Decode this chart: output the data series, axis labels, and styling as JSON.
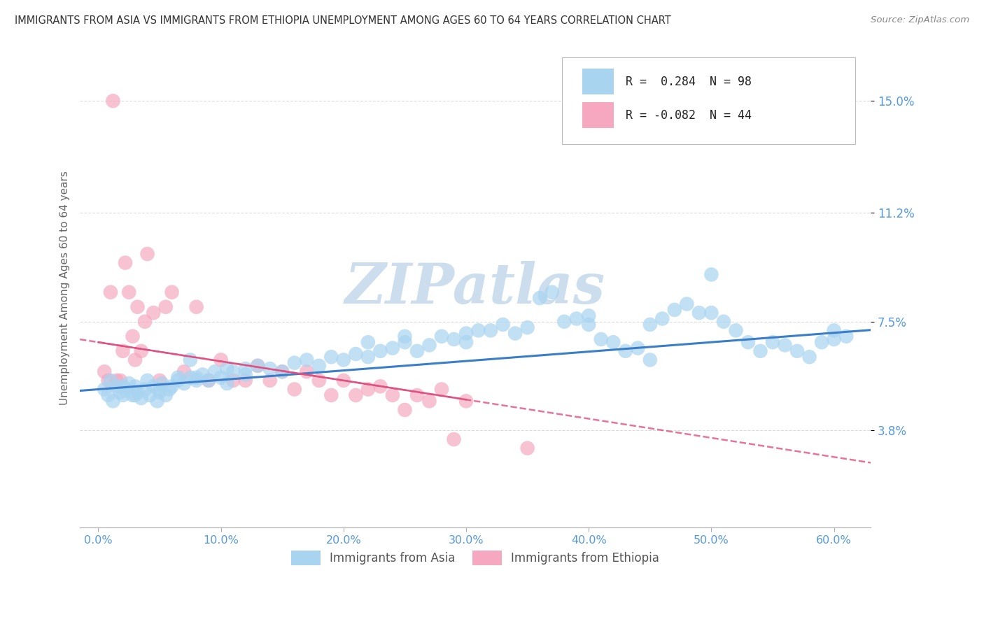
{
  "title": "IMMIGRANTS FROM ASIA VS IMMIGRANTS FROM ETHIOPIA UNEMPLOYMENT AMONG AGES 60 TO 64 YEARS CORRELATION CHART",
  "source": "Source: ZipAtlas.com",
  "xlabel_ticks": [
    "0.0%",
    "10.0%",
    "20.0%",
    "30.0%",
    "40.0%",
    "50.0%",
    "60.0%"
  ],
  "xlabel_vals": [
    0.0,
    10.0,
    20.0,
    30.0,
    40.0,
    50.0,
    60.0
  ],
  "ylabel_ticks": [
    "3.8%",
    "7.5%",
    "11.2%",
    "15.0%"
  ],
  "ylabel_vals": [
    3.8,
    7.5,
    11.2,
    15.0
  ],
  "xlim": [
    -1.5,
    63.0
  ],
  "ylim": [
    0.5,
    16.8
  ],
  "asia_R": 0.284,
  "asia_N": 98,
  "ethiopia_R": -0.082,
  "ethiopia_N": 44,
  "asia_color": "#A8D4F0",
  "ethiopia_color": "#F5A8C0",
  "asia_line_color": "#3A7DC9",
  "ethiopia_line_color": "#E05080",
  "grid_color": "#CCCCCC",
  "title_color": "#333333",
  "tick_label_color": "#5599DD",
  "watermark_color": "#CCDDEE",
  "watermark_text": "ZIPatlas",
  "ylabel_text": "Unemployment Among Ages 60 to 64 years",
  "legend_label_asia": "Immigrants from Asia",
  "legend_label_ethiopia": "Immigrants from Ethiopia",
  "asia_scatter_x": [
    0.5,
    0.8,
    1.0,
    1.2,
    1.5,
    1.8,
    2.0,
    2.2,
    2.5,
    2.8,
    3.0,
    3.2,
    3.5,
    3.8,
    4.0,
    4.2,
    4.5,
    4.8,
    5.0,
    5.2,
    5.5,
    5.8,
    6.0,
    6.5,
    7.0,
    7.5,
    8.0,
    8.5,
    9.0,
    9.5,
    10.0,
    10.5,
    11.0,
    12.0,
    13.0,
    14.0,
    15.0,
    16.0,
    17.0,
    18.0,
    19.0,
    20.0,
    21.0,
    22.0,
    23.0,
    24.0,
    25.0,
    26.0,
    27.0,
    28.0,
    29.0,
    30.0,
    32.0,
    33.0,
    34.0,
    35.0,
    36.0,
    37.0,
    38.0,
    39.0,
    40.0,
    41.0,
    42.0,
    43.0,
    44.0,
    45.0,
    46.0,
    47.0,
    48.0,
    49.0,
    50.0,
    51.0,
    52.0,
    53.0,
    54.0,
    55.0,
    56.0,
    57.0,
    58.0,
    59.0,
    60.0,
    61.0,
    45.0,
    30.0,
    25.0,
    12.0,
    8.0,
    5.0,
    3.0,
    2.0,
    6.5,
    7.5,
    10.5,
    22.0,
    31.0,
    40.0,
    50.0,
    60.0
  ],
  "asia_scatter_y": [
    5.2,
    5.0,
    5.5,
    4.8,
    5.3,
    5.1,
    5.0,
    5.2,
    5.4,
    5.0,
    5.3,
    5.1,
    4.9,
    5.2,
    5.5,
    5.0,
    5.3,
    4.8,
    5.1,
    5.4,
    5.0,
    5.2,
    5.3,
    5.5,
    5.4,
    5.6,
    5.5,
    5.7,
    5.5,
    5.8,
    5.6,
    5.4,
    5.8,
    5.7,
    6.0,
    5.9,
    5.8,
    6.1,
    6.2,
    6.0,
    6.3,
    6.2,
    6.4,
    6.3,
    6.5,
    6.6,
    6.8,
    6.5,
    6.7,
    7.0,
    6.9,
    7.1,
    7.2,
    7.4,
    7.1,
    7.3,
    8.3,
    8.5,
    7.5,
    7.6,
    7.4,
    6.9,
    6.8,
    6.5,
    6.6,
    7.4,
    7.6,
    7.9,
    8.1,
    7.8,
    9.1,
    7.5,
    7.2,
    6.8,
    6.5,
    6.8,
    6.7,
    6.5,
    6.3,
    6.8,
    6.9,
    7.0,
    6.2,
    6.8,
    7.0,
    5.9,
    5.6,
    5.2,
    5.0,
    5.3,
    5.6,
    6.2,
    5.9,
    6.8,
    7.2,
    7.7,
    7.8,
    7.2
  ],
  "ethiopia_scatter_x": [
    0.5,
    0.8,
    1.0,
    1.2,
    1.5,
    1.8,
    2.0,
    2.2,
    2.5,
    2.8,
    3.0,
    3.2,
    3.5,
    3.8,
    4.0,
    4.5,
    5.0,
    5.5,
    6.0,
    7.0,
    8.0,
    9.0,
    10.0,
    11.0,
    12.0,
    13.0,
    14.0,
    15.0,
    16.0,
    17.0,
    18.0,
    19.0,
    20.0,
    21.0,
    22.0,
    23.0,
    24.0,
    25.0,
    26.0,
    27.0,
    28.0,
    29.0,
    30.0,
    35.0
  ],
  "ethiopia_scatter_y": [
    5.8,
    5.5,
    8.5,
    15.0,
    5.5,
    5.5,
    6.5,
    9.5,
    8.5,
    7.0,
    6.2,
    8.0,
    6.5,
    7.5,
    9.8,
    7.8,
    5.5,
    8.0,
    8.5,
    5.8,
    8.0,
    5.5,
    6.2,
    5.5,
    5.5,
    6.0,
    5.5,
    5.8,
    5.2,
    5.8,
    5.5,
    5.0,
    5.5,
    5.0,
    5.2,
    5.3,
    5.0,
    4.5,
    5.0,
    4.8,
    5.2,
    3.5,
    4.8,
    3.2
  ],
  "asia_trend_slope": 0.032,
  "asia_trend_intercept": 5.2,
  "ethiopia_trend_slope": -0.065,
  "ethiopia_trend_intercept": 6.8
}
